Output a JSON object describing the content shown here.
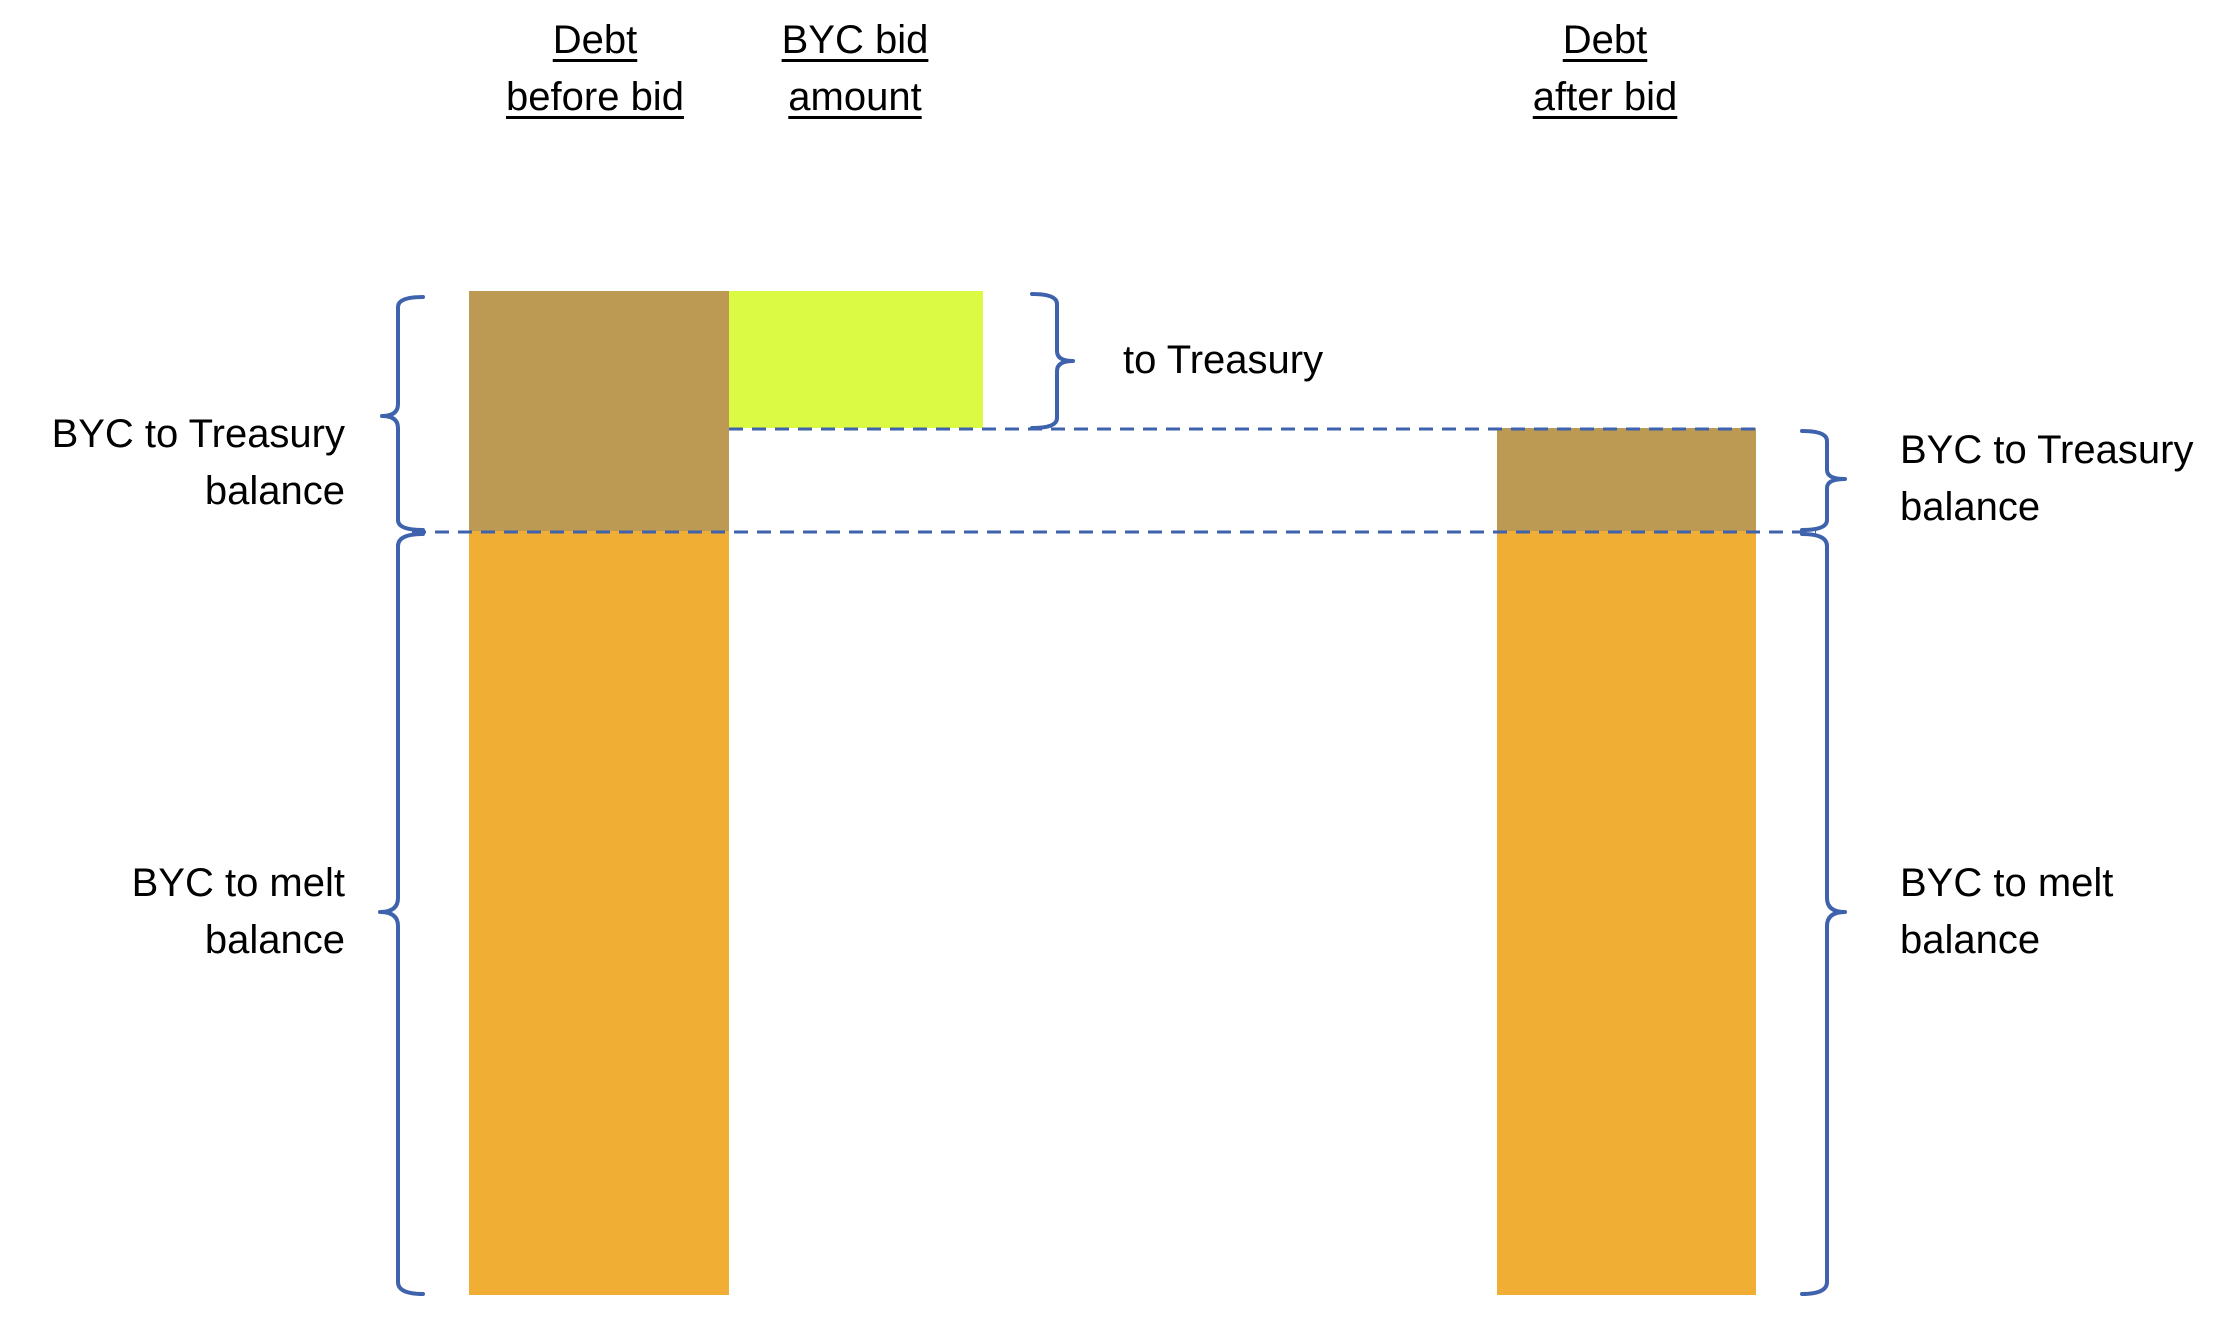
{
  "headers": {
    "debt_before_bid": [
      "Debt",
      "before bid"
    ],
    "byc_bid_amount": [
      "BYC bid",
      "amount"
    ],
    "debt_after_bid": [
      "Debt",
      "after bid"
    ]
  },
  "labels": {
    "left_treasury": [
      "BYC to Treasury",
      "balance"
    ],
    "left_melt": [
      "BYC to melt",
      "balance"
    ],
    "to_treasury": "to Treasury",
    "right_treasury": [
      "BYC to Treasury",
      "balance"
    ],
    "right_melt": [
      "BYC to melt",
      "balance"
    ]
  },
  "colors": {
    "treasury_balance": "#BC9A54",
    "melt_balance": "#F0AE34",
    "bid_amount": "#DBFA44",
    "bracket": "#3F62AD",
    "dashed_line": "#3F62AD"
  }
}
